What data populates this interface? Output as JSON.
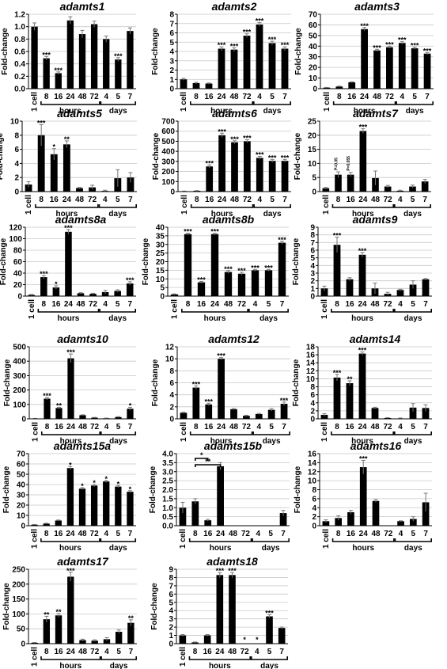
{
  "figure": {
    "ylabel": "Fold-change",
    "groups": {
      "hours": "hours",
      "days": "days"
    }
  },
  "chart_data": [
    {
      "type": "bar",
      "title": "adamts1",
      "categories": [
        "1 cell",
        "8",
        "16",
        "24",
        "48",
        "72",
        "4",
        "5",
        "7"
      ],
      "values": [
        1.0,
        0.49,
        0.25,
        1.1,
        0.88,
        1.04,
        0.8,
        0.47,
        0.93
      ],
      "errors": [
        0.06,
        0.03,
        0.02,
        0.06,
        0.06,
        0.05,
        0.05,
        0.03,
        0.05
      ],
      "sig": [
        "",
        "***",
        "***",
        "",
        "",
        "",
        "",
        "***",
        ""
      ],
      "ylabel": "Fold-change",
      "ylim": [
        0,
        1.2
      ],
      "yticks": [
        0,
        0.2,
        0.4,
        0.6,
        0.8,
        1.0,
        1.2
      ],
      "grid": true,
      "groups": [
        "hours",
        "days"
      ]
    },
    {
      "type": "bar",
      "title": "adamts2",
      "categories": [
        "1 cell",
        "8",
        "16",
        "24",
        "48",
        "72",
        "4",
        "5",
        "7"
      ],
      "values": [
        1.0,
        0.6,
        0.55,
        4.3,
        4.2,
        5.7,
        6.9,
        4.9,
        4.3
      ],
      "errors": [
        0.1,
        0.08,
        0.06,
        0.2,
        0.2,
        0.2,
        0.2,
        0.2,
        0.2
      ],
      "sig": [
        "",
        "",
        "",
        "***",
        "***",
        "***",
        "***",
        "***",
        "***"
      ],
      "ylabel": "Fold-change",
      "ylim": [
        0,
        8
      ],
      "yticks": [
        0,
        1,
        2,
        3,
        4,
        5,
        6,
        7,
        8
      ],
      "grid": true,
      "groups": [
        "hours",
        "days"
      ]
    },
    {
      "type": "bar",
      "title": "adamts3",
      "categories": [
        "1 cell",
        "8",
        "16",
        "24",
        "48",
        "72",
        "4",
        "5",
        "7"
      ],
      "values": [
        1,
        2,
        6,
        56,
        36,
        39,
        43,
        38,
        33
      ],
      "errors": [
        0.2,
        0.4,
        0.5,
        1.5,
        1,
        1,
        1.2,
        1,
        1
      ],
      "sig": [
        "",
        "",
        "",
        "***",
        "***",
        "***",
        "***",
        "***",
        "***"
      ],
      "ylabel": "Fold-change",
      "ylim": [
        0,
        70
      ],
      "yticks": [
        0,
        10,
        20,
        30,
        40,
        50,
        60,
        70
      ],
      "grid": true,
      "groups": [
        "hours",
        "days"
      ]
    },
    {
      "type": "bar",
      "title": "adamts5",
      "categories": [
        "1 cell",
        "8",
        "16",
        "24",
        "48",
        "72",
        "4",
        "5",
        "7"
      ],
      "values": [
        1.0,
        8.0,
        5.3,
        6.7,
        0.5,
        0.6,
        0.1,
        1.9,
        2.0
      ],
      "errors": [
        0.4,
        1.5,
        0.8,
        0.5,
        0.1,
        0.3,
        0.1,
        1.2,
        0.7
      ],
      "sig": [
        "",
        "***",
        "*",
        "**",
        "",
        "",
        "",
        "",
        ""
      ],
      "ylabel": "Fold-change",
      "ylim": [
        0,
        10
      ],
      "yticks": [
        0,
        2,
        4,
        6,
        8,
        10
      ],
      "grid": true,
      "groups": [
        "hours",
        "days"
      ]
    },
    {
      "type": "bar",
      "title": "adamts6",
      "categories": [
        "1 cell",
        "8",
        "16",
        "24",
        "48",
        "72",
        "4",
        "5",
        "7"
      ],
      "values": [
        4,
        8,
        250,
        560,
        490,
        500,
        335,
        305,
        305
      ],
      "errors": [
        1,
        2,
        15,
        20,
        15,
        15,
        15,
        15,
        15
      ],
      "sig": [
        "",
        "",
        "***",
        "***",
        "***",
        "***",
        "***",
        "***",
        "***"
      ],
      "ylabel": "Fold-change",
      "ylim": [
        0,
        700
      ],
      "yticks": [
        0,
        100,
        200,
        300,
        400,
        500,
        600,
        700
      ],
      "grid": true,
      "groups": [
        "hours",
        "days"
      ]
    },
    {
      "type": "bar",
      "title": "adamts7",
      "categories": [
        "1 cell",
        "8",
        "16",
        "24",
        "48",
        "72",
        "4",
        "5",
        "7"
      ],
      "values": [
        1.2,
        6.0,
        6.0,
        21.5,
        4.8,
        1.8,
        0.3,
        1.8,
        3.6
      ],
      "errors": [
        0.3,
        1.0,
        0.8,
        0.8,
        2.5,
        0.4,
        0.2,
        0.5,
        0.7
      ],
      "sig": [
        "",
        "P=0.05",
        "P=0.055",
        "***",
        "",
        "",
        "",
        "",
        ""
      ],
      "ylabel": "Fold-change",
      "ylim": [
        0,
        25
      ],
      "yticks": [
        0,
        5,
        10,
        15,
        20,
        25
      ],
      "grid": true,
      "groups": [
        "hours",
        "days"
      ]
    },
    {
      "type": "bar",
      "title": "adamts8a",
      "categories": [
        "1 cell",
        "8",
        "16",
        "24",
        "48",
        "72",
        "4",
        "5",
        "7"
      ],
      "values": [
        2,
        33,
        15,
        112,
        5,
        4,
        7,
        9,
        22
      ],
      "errors": [
        1,
        3,
        3,
        4,
        1,
        1,
        3,
        2,
        3
      ],
      "sig": [
        "",
        "***",
        "*",
        "***",
        "",
        "",
        "",
        "",
        "***"
      ],
      "ylabel": "Fold-change",
      "ylim": [
        0,
        120
      ],
      "yticks": [
        0,
        20,
        40,
        60,
        80,
        100,
        120
      ],
      "grid": true,
      "groups": [
        "hours",
        "days"
      ]
    },
    {
      "type": "bar",
      "title": "adamts8b",
      "categories": [
        "1 cell",
        "8",
        "16",
        "24",
        "48",
        "72",
        "4",
        "5",
        "7"
      ],
      "values": [
        1,
        36,
        8,
        36,
        14,
        13,
        15,
        15,
        31
      ],
      "errors": [
        0.3,
        0.5,
        0.5,
        0.5,
        0.8,
        0.8,
        0.5,
        0.5,
        0.8
      ],
      "sig": [
        "",
        "***",
        "***",
        "***",
        "***",
        "***",
        "***",
        "***",
        "***"
      ],
      "ylabel": "Fold-change",
      "ylim": [
        0,
        40
      ],
      "yticks": [
        0,
        5,
        10,
        15,
        20,
        25,
        30,
        35,
        40
      ],
      "grid": true,
      "groups": [
        "hours",
        "days"
      ]
    },
    {
      "type": "bar",
      "title": "adamts9",
      "categories": [
        "1 cell",
        "8",
        "16",
        "24",
        "48",
        "72",
        "4",
        "5",
        "7"
      ],
      "values": [
        1.0,
        6.7,
        2.2,
        5.4,
        1.0,
        0.3,
        0.8,
        1.5,
        2.2
      ],
      "errors": [
        0.3,
        1.0,
        0.2,
        0.3,
        0.7,
        0.2,
        0.1,
        0.5,
        0.1
      ],
      "sig": [
        "",
        "***",
        "",
        "***",
        "",
        "",
        "",
        "",
        ""
      ],
      "ylabel": "Fold-change",
      "ylim": [
        0,
        9
      ],
      "yticks": [
        0,
        1,
        2,
        3,
        4,
        5,
        6,
        7,
        8,
        9
      ],
      "grid": true,
      "groups": [
        "hours",
        "days"
      ]
    },
    {
      "type": "bar",
      "title": "adamts10",
      "categories": [
        "1 cell",
        "8",
        "16",
        "24",
        "48",
        "72",
        "4",
        "5",
        "7"
      ],
      "values": [
        2,
        140,
        75,
        420,
        25,
        8,
        4,
        12,
        70
      ],
      "errors": [
        1,
        8,
        5,
        30,
        3,
        2,
        1,
        3,
        10
      ],
      "sig": [
        "",
        "***",
        "**",
        "***",
        "",
        "",
        "",
        "",
        "*"
      ],
      "ylabel": "Fold-change",
      "ylim": [
        0,
        500
      ],
      "yticks": [
        0,
        100,
        200,
        300,
        400,
        500
      ],
      "grid": true,
      "groups": [
        "hours",
        "days"
      ]
    },
    {
      "type": "bar",
      "title": "adamts12",
      "categories": [
        "1 cell",
        "8",
        "16",
        "24",
        "48",
        "72",
        "4",
        "5",
        "7"
      ],
      "values": [
        1.0,
        5.2,
        2.4,
        10.0,
        1.6,
        0.5,
        0.8,
        1.5,
        2.5
      ],
      "errors": [
        0.1,
        0.3,
        0.2,
        0.2,
        0.1,
        0.1,
        0.1,
        0.2,
        0.3
      ],
      "sig": [
        "",
        "***",
        "***",
        "***",
        "",
        "",
        "",
        "",
        "***"
      ],
      "ylabel": "Fold-change",
      "ylim": [
        0,
        12
      ],
      "yticks": [
        0,
        2,
        4,
        6,
        8,
        10,
        12
      ],
      "grid": true,
      "groups": [
        "hours",
        "days"
      ]
    },
    {
      "type": "bar",
      "title": "adamts14",
      "categories": [
        "1 cell",
        "8",
        "16",
        "24",
        "48",
        "72",
        "4",
        "5",
        "7"
      ],
      "values": [
        1.0,
        10.3,
        8.9,
        16.3,
        2.7,
        0.2,
        0.1,
        2.8,
        2.7
      ],
      "errors": [
        0.3,
        0.8,
        0.6,
        0.4,
        0.2,
        0.1,
        0.1,
        1.0,
        0.8
      ],
      "sig": [
        "",
        "***",
        "**",
        "***",
        "",
        "",
        "",
        "",
        ""
      ],
      "ylabel": "Fold-change",
      "ylim": [
        0,
        18
      ],
      "yticks": [
        0,
        2,
        4,
        6,
        8,
        10,
        12,
        14,
        16,
        18
      ],
      "grid": true,
      "groups": [
        "hours",
        "days"
      ]
    },
    {
      "type": "bar",
      "title": "adamts15a",
      "categories": [
        "1 cell",
        "8",
        "16",
        "24",
        "48",
        "72",
        "4",
        "5",
        "7"
      ],
      "values": [
        1,
        2,
        5,
        56,
        36,
        39,
        43,
        38,
        33
      ],
      "errors": [
        0.2,
        0.4,
        0.5,
        1.5,
        1,
        1,
        1,
        1,
        1
      ],
      "sig": [
        "",
        "",
        "",
        "*",
        "*",
        "*",
        "*",
        "*",
        "*"
      ],
      "ylabel": "Fold-change",
      "ylim": [
        0,
        70
      ],
      "yticks": [
        0,
        10,
        20,
        30,
        40,
        50,
        60,
        70
      ],
      "grid": true,
      "groups": [
        "hours",
        "days"
      ]
    },
    {
      "type": "bar",
      "title": "adamts15b",
      "categories": [
        "1 cell",
        "8",
        "16",
        "24",
        "48",
        "72",
        "4",
        "5",
        "7"
      ],
      "values": [
        1.0,
        1.35,
        0.3,
        3.3,
        0,
        0,
        0,
        0,
        0.7
      ],
      "errors": [
        0.3,
        0.15,
        0.05,
        0.2,
        0,
        0,
        0,
        0,
        0.15
      ],
      "sig": [
        "",
        "",
        "",
        "",
        "",
        "",
        "",
        "",
        ""
      ],
      "brackets": [
        {
          "from": "8",
          "to": "16",
          "label": "*"
        },
        {
          "from": "8",
          "to": "24",
          "label": "**"
        }
      ],
      "ylabel": "Fold-change",
      "ylim": [
        0,
        4
      ],
      "yticks": [
        0,
        0.5,
        1,
        1.5,
        2,
        2.5,
        3,
        3.5,
        4
      ],
      "grid": true,
      "groups": [
        "hours",
        "days"
      ]
    },
    {
      "type": "bar",
      "title": "adamts16",
      "categories": [
        "1 cell",
        "8",
        "16",
        "24",
        "48",
        "72",
        "4",
        "5",
        "7"
      ],
      "values": [
        1.0,
        1.7,
        3.0,
        13.0,
        5.5,
        0,
        1.0,
        1.5,
        5.2
      ],
      "errors": [
        0.3,
        0.5,
        0.4,
        1.5,
        0.3,
        0,
        0.1,
        0.5,
        2.0
      ],
      "sig": [
        "",
        "",
        "",
        "***",
        "",
        "",
        "",
        "",
        ""
      ],
      "ylabel": "Fold-change",
      "ylim": [
        0,
        16
      ],
      "yticks": [
        0,
        2,
        4,
        6,
        8,
        10,
        12,
        14,
        16
      ],
      "grid": true,
      "groups": [
        "hours",
        "days"
      ]
    },
    {
      "type": "bar",
      "title": "adamts17",
      "categories": [
        "1 cell",
        "8",
        "16",
        "24",
        "48",
        "72",
        "4",
        "5",
        "7"
      ],
      "values": [
        3,
        82,
        95,
        225,
        12,
        10,
        15,
        40,
        70
      ],
      "errors": [
        1,
        10,
        6,
        15,
        3,
        3,
        5,
        6,
        10
      ],
      "sig": [
        "",
        "**",
        "**",
        "***",
        "",
        "",
        "",
        "",
        "**"
      ],
      "ylabel": "Fold-change",
      "ylim": [
        0,
        250
      ],
      "yticks": [
        0,
        50,
        100,
        150,
        200,
        250
      ],
      "grid": true,
      "groups": [
        "hours",
        "days"
      ]
    },
    {
      "type": "bar",
      "title": "adamts18",
      "categories": [
        "1 cell",
        "8",
        "16",
        "24",
        "48",
        "72",
        "4",
        "5",
        "7"
      ],
      "values": [
        1.0,
        0.15,
        1.0,
        8.3,
        8.3,
        0,
        0,
        3.3,
        1.9
      ],
      "errors": [
        0.1,
        0.05,
        0.1,
        0.3,
        0.3,
        0,
        0,
        0.2,
        0.1
      ],
      "sig": [
        "",
        "",
        "",
        "***",
        "***",
        "*",
        "*",
        "***",
        ""
      ],
      "ylabel": "Fold-change",
      "ylim": [
        0,
        9
      ],
      "yticks": [
        0,
        1,
        2,
        3,
        4,
        5,
        6,
        7,
        8,
        9
      ],
      "grid": true,
      "groups": [
        "hours",
        "days"
      ]
    }
  ]
}
